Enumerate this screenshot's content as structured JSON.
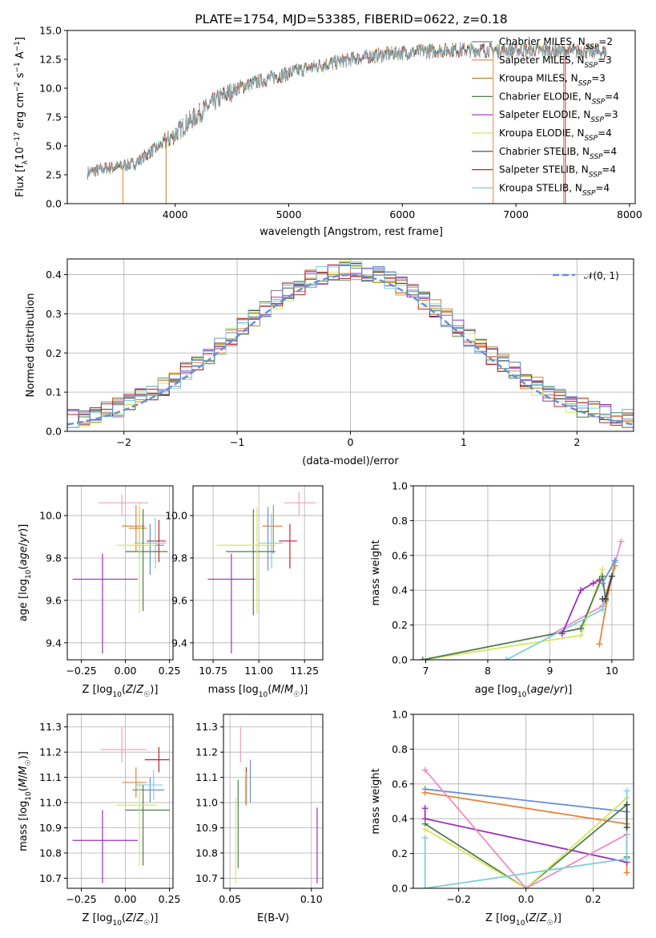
{
  "chart_data": [
    {
      "id": "spectrum",
      "type": "line",
      "title": "PLATE=1754, MJD=53385, FIBERID=0622, z=0.18",
      "xlabel": "wavelength [Angstrom, rest frame]",
      "ylabel": "Flux [f_λ 10^-17 erg cm^-2 s^-1 A^-1]",
      "xlim": [
        3050,
        8050
      ],
      "ylim": [
        0,
        15
      ],
      "xticks": [
        4000,
        5000,
        6000,
        7000,
        8000
      ],
      "yticks": [
        0.0,
        2.5,
        5.0,
        7.5,
        10.0,
        12.5,
        15.0
      ],
      "grid": false,
      "legend_position": "top-right",
      "continuum": {
        "x": [
          3230,
          3350,
          3500,
          3650,
          3800,
          3950,
          4100,
          4250,
          4400,
          4550,
          4700,
          4850,
          5000,
          5150,
          5300,
          5450,
          5600,
          5750,
          5900,
          6050,
          6200,
          6400,
          6600,
          6800,
          7000,
          7200,
          7400,
          7600,
          7800
        ],
        "y": [
          2.7,
          3.0,
          3.2,
          3.5,
          4.6,
          5.6,
          6.9,
          8.1,
          9.2,
          10.0,
          10.5,
          10.9,
          11.3,
          11.7,
          12.0,
          12.3,
          12.6,
          12.8,
          13.0,
          13.1,
          13.2,
          13.3,
          13.3,
          13.3,
          13.3,
          13.3,
          13.2,
          13.2,
          13.1
        ]
      },
      "series": [
        {
          "name": "Chabrier MILES, N_SSP=2",
          "label_main": "Chabrier MILES, N",
          "label_sub": "SSP",
          "label_tail": "=2",
          "color": "#808080"
        },
        {
          "name": "Salpeter MILES, N_SSP=3",
          "label_main": "Salpeter MILES, N",
          "label_sub": "SSP",
          "label_tail": "=3",
          "color": "#e8833a"
        },
        {
          "name": "Kroupa MILES, N_SSP=3",
          "label_main": "Kroupa MILES, N",
          "label_sub": "SSP",
          "label_tail": "=3",
          "color": "#b5872a"
        },
        {
          "name": "Chabrier ELODIE, N_SSP=4",
          "label_main": "Chabrier ELODIE, N",
          "label_sub": "SSP",
          "label_tail": "=4",
          "color": "#4e7d4e"
        },
        {
          "name": "Salpeter ELODIE, N_SSP=3",
          "label_main": "Salpeter ELODIE, N",
          "label_sub": "SSP",
          "label_tail": "=3",
          "color": "#9b30b8"
        },
        {
          "name": "Kroupa ELODIE, N_SSP=4",
          "label_main": "Kroupa ELODIE, N",
          "label_sub": "SSP",
          "label_tail": "=4",
          "color": "#d7e85a"
        },
        {
          "name": "Chabrier STELIB, N_SSP=4",
          "label_main": "Chabrier STELIB, N",
          "label_sub": "SSP",
          "label_tail": "=4",
          "color": "#404040"
        },
        {
          "name": "Salpeter STELIB, N_SSP=4",
          "label_main": "Salpeter STELIB, N",
          "label_sub": "SSP",
          "label_tail": "=4",
          "color": "#c0262e"
        },
        {
          "name": "Kroupa STELIB, N_SSP=4",
          "label_main": "Kroupa STELIB, N",
          "label_sub": "SSP",
          "label_tail": "=4",
          "color": "#7ecfd9"
        }
      ]
    },
    {
      "id": "residuals",
      "type": "histogram",
      "xlabel": "(data-model)/error",
      "ylabel": "Normed distribution",
      "xlim": [
        -2.5,
        2.5
      ],
      "ylim": [
        0,
        0.44
      ],
      "xticks": [
        -2,
        -1,
        0,
        1,
        2
      ],
      "yticks": [
        0.0,
        0.1,
        0.2,
        0.3,
        0.4
      ],
      "grid": true,
      "legend_position": "top-right",
      "gaussian_label": "𝒩(0, 1)",
      "gaussian_color": "#6a8fd6",
      "bin_edges_start": -2.5,
      "bin_width": 0.1,
      "bin_count": 50
    },
    {
      "id": "age-vs-Z",
      "type": "errorbar",
      "xlabel": "Z [log10(Z/Z☉)]",
      "ylabel": "age  [log10(age/yr)]",
      "xlim": [
        -0.33,
        0.27
      ],
      "ylim": [
        9.32,
        10.14
      ],
      "xticks": [
        -0.25,
        0.0,
        0.25
      ],
      "yticks": [
        9.4,
        9.6,
        9.8,
        10.0
      ],
      "grid": true,
      "points": [
        {
          "x": -0.02,
          "xlo": 0.13,
          "xhi": 0.15,
          "y": 10.06,
          "ylo": 0.06,
          "yhi": 0.04,
          "color": "#f2a0c0"
        },
        {
          "x": 0.06,
          "xlo": 0.08,
          "xhi": 0.05,
          "y": 9.95,
          "ylo": 0.12,
          "yhi": 0.1,
          "color": "#e8833a"
        },
        {
          "x": 0.08,
          "xlo": 0.06,
          "xhi": 0.04,
          "y": 9.94,
          "ylo": 0.14,
          "yhi": 0.1,
          "color": "#b5872a"
        },
        {
          "x": 0.19,
          "xlo": 0.07,
          "xhi": 0.04,
          "y": 9.88,
          "ylo": 0.1,
          "yhi": 0.1,
          "color": "#c0262e"
        },
        {
          "x": 0.14,
          "xlo": 0.09,
          "xhi": 0.08,
          "y": 9.86,
          "ylo": 0.14,
          "yhi": 0.1,
          "color": "#6a8fd6"
        },
        {
          "x": 0.17,
          "xlo": 0.12,
          "xhi": 0.06,
          "y": 9.87,
          "ylo": 0.12,
          "yhi": 0.12,
          "color": "#7ecfd9"
        },
        {
          "x": 0.1,
          "xlo": 0.1,
          "xhi": 0.14,
          "y": 9.83,
          "ylo": 0.28,
          "yhi": 0.2,
          "color": "#4e7d4e"
        },
        {
          "x": 0.08,
          "xlo": 0.13,
          "xhi": 0.09,
          "y": 9.86,
          "ylo": 0.32,
          "yhi": 0.2,
          "color": "#d7e85a"
        },
        {
          "x": -0.13,
          "xlo": 0.17,
          "xhi": 0.2,
          "y": 9.7,
          "ylo": 0.35,
          "yhi": 0.12,
          "color": "#9b30b8"
        }
      ]
    },
    {
      "id": "age-vs-mass",
      "type": "errorbar",
      "xlabel": "mass [log10(M/M☉)]",
      "xlim": [
        10.64,
        11.35
      ],
      "ylim": [
        9.32,
        10.14
      ],
      "xticks": [
        10.75,
        11.0,
        11.25
      ],
      "yticks": [
        9.4,
        9.6,
        9.8,
        10.0
      ],
      "grid": true,
      "points": [
        {
          "x": 11.22,
          "xlo": 0.08,
          "xhi": 0.09,
          "y": 10.06,
          "ylo": 0.06,
          "yhi": 0.05,
          "color": "#f2a0c0"
        },
        {
          "x": 11.08,
          "xlo": 0.06,
          "xhi": 0.05,
          "y": 9.95,
          "ylo": 0.13,
          "yhi": 0.1,
          "color": "#e8833a"
        },
        {
          "x": 11.17,
          "xlo": 0.06,
          "xhi": 0.04,
          "y": 9.88,
          "ylo": 0.13,
          "yhi": 0.08,
          "color": "#c0262e"
        },
        {
          "x": 11.05,
          "xlo": 0.05,
          "xhi": 0.04,
          "y": 9.86,
          "ylo": 0.12,
          "yhi": 0.18,
          "color": "#6a8fd6"
        },
        {
          "x": 11.07,
          "xlo": 0.07,
          "xhi": 0.06,
          "y": 9.87,
          "ylo": 0.12,
          "yhi": 0.14,
          "color": "#7ecfd9"
        },
        {
          "x": 10.97,
          "xlo": 0.15,
          "xhi": 0.12,
          "y": 9.83,
          "ylo": 0.3,
          "yhi": 0.2,
          "color": "#4e7d4e"
        },
        {
          "x": 10.99,
          "xlo": 0.22,
          "xhi": 0.1,
          "y": 9.86,
          "ylo": 0.32,
          "yhi": 0.18,
          "color": "#d7e85a"
        },
        {
          "x": 10.85,
          "xlo": 0.13,
          "xhi": 0.13,
          "y": 9.7,
          "ylo": 0.35,
          "yhi": 0.12,
          "color": "#9b30b8"
        }
      ]
    },
    {
      "id": "mass-weight-vs-age",
      "type": "line",
      "xlabel": "age  [log10(age/yr)]",
      "ylabel": "mass weight",
      "xlim": [
        6.8,
        10.35
      ],
      "ylim": [
        0.0,
        1.0
      ],
      "xticks": [
        7,
        8,
        9,
        10
      ],
      "yticks": [
        0.0,
        0.2,
        0.4,
        0.6,
        0.8,
        1.0
      ],
      "grid": true,
      "series": [
        {
          "color": "#f08cc0",
          "x": [
            9.0,
            9.85,
            10.15
          ],
          "y": [
            0.14,
            0.31,
            0.68
          ]
        },
        {
          "color": "#d7e85a",
          "x": [
            6.95,
            9.5,
            9.85
          ],
          "y": [
            0.0,
            0.14,
            0.52
          ]
        },
        {
          "color": "#4e7d4e",
          "x": [
            6.95,
            9.5,
            9.85,
            9.9
          ],
          "y": [
            0.0,
            0.18,
            0.48,
            0.34
          ]
        },
        {
          "color": "#7ecfd9",
          "x": [
            8.3,
            9.85,
            10.05
          ],
          "y": [
            0.0,
            0.29,
            0.56
          ]
        },
        {
          "color": "#6a8fd6",
          "x": [
            9.85,
            10.05
          ],
          "y": [
            0.44,
            0.57
          ]
        },
        {
          "color": "#e8833a",
          "x": [
            9.8,
            9.95,
            10.05
          ],
          "y": [
            0.09,
            0.4,
            0.54
          ]
        },
        {
          "color": "#9b30b8",
          "x": [
            9.2,
            9.5,
            9.7,
            9.8
          ],
          "y": [
            0.15,
            0.4,
            0.44,
            0.46
          ]
        },
        {
          "color": "#404040",
          "x": [
            9.85,
            9.9,
            10.0
          ],
          "y": [
            0.35,
            0.35,
            0.48
          ]
        }
      ]
    },
    {
      "id": "mass-vs-Z",
      "type": "errorbar",
      "xlabel": "Z [log10(Z/Z☉)]",
      "ylabel": "mass [log10(M/M☉)]",
      "xlim": [
        -0.33,
        0.27
      ],
      "ylim": [
        10.66,
        11.35
      ],
      "xticks": [
        -0.25,
        0.0,
        0.25
      ],
      "yticks": [
        10.7,
        10.8,
        10.9,
        11.0,
        11.1,
        11.2,
        11.3
      ],
      "grid": true,
      "points": [
        {
          "x": -0.02,
          "xlo": 0.12,
          "xhi": 0.14,
          "y": 11.21,
          "ylo": 0.05,
          "yhi": 0.09,
          "color": "#f2a0c0"
        },
        {
          "x": 0.19,
          "xlo": 0.08,
          "xhi": 0.06,
          "y": 11.17,
          "ylo": 0.05,
          "yhi": 0.05,
          "color": "#c0262e"
        },
        {
          "x": 0.06,
          "xlo": 0.08,
          "xhi": 0.06,
          "y": 11.08,
          "ylo": 0.06,
          "yhi": 0.06,
          "color": "#e8833a"
        },
        {
          "x": 0.14,
          "xlo": 0.1,
          "xhi": 0.08,
          "y": 11.05,
          "ylo": 0.05,
          "yhi": 0.05,
          "color": "#6a8fd6"
        },
        {
          "x": 0.16,
          "xlo": 0.1,
          "xhi": 0.05,
          "y": 11.07,
          "ylo": 0.06,
          "yhi": 0.06,
          "color": "#7ecfd9"
        },
        {
          "x": 0.1,
          "xlo": 0.1,
          "xhi": 0.15,
          "y": 10.97,
          "ylo": 0.22,
          "yhi": 0.1,
          "color": "#4e7d4e"
        },
        {
          "x": 0.08,
          "xlo": 0.13,
          "xhi": 0.1,
          "y": 10.99,
          "ylo": 0.24,
          "yhi": 0.1,
          "color": "#d7e85a"
        },
        {
          "x": -0.13,
          "xlo": 0.17,
          "xhi": 0.2,
          "y": 10.85,
          "ylo": 0.17,
          "yhi": 0.12,
          "color": "#9b30b8"
        }
      ]
    },
    {
      "id": "mass-vs-EBV",
      "type": "errorbar",
      "xlabel": "E(B-V)",
      "xlim": [
        0.046,
        0.107
      ],
      "ylim": [
        10.66,
        11.35
      ],
      "xticks": [
        0.05,
        0.1
      ],
      "yticks": [
        10.7,
        10.8,
        10.9,
        11.0,
        11.1,
        11.2,
        11.3
      ],
      "grid": true,
      "points": [
        {
          "x": 0.0565,
          "y": 11.21,
          "ylo": 0.05,
          "yhi": 0.09,
          "color": "#f2a0c0"
        },
        {
          "x": 0.06,
          "y": 11.08,
          "ylo": 0.05,
          "yhi": 0.06,
          "color": "#c0262e"
        },
        {
          "x": 0.06,
          "y": 11.05,
          "ylo": 0.06,
          "yhi": 0.07,
          "color": "#e8833a"
        },
        {
          "x": 0.0625,
          "y": 11.06,
          "ylo": 0.06,
          "yhi": 0.11,
          "color": "#6a8fd6"
        },
        {
          "x": 0.0595,
          "y": 11.05,
          "ylo": 0.06,
          "yhi": 0.06,
          "color": "#7ecfd9"
        },
        {
          "x": 0.055,
          "y": 10.96,
          "ylo": 0.22,
          "yhi": 0.13,
          "color": "#4e7d4e"
        },
        {
          "x": 0.0535,
          "y": 10.92,
          "ylo": 0.24,
          "yhi": 0.1,
          "color": "#d7e85a"
        },
        {
          "x": 0.1035,
          "y": 10.85,
          "ylo": 0.17,
          "yhi": 0.13,
          "color": "#9b30b8"
        }
      ]
    },
    {
      "id": "mass-weight-vs-Z",
      "type": "line",
      "xlabel": "Z [log10(Z/Z☉)]",
      "ylabel": "mass weight",
      "xlim": [
        -0.335,
        0.32
      ],
      "ylim": [
        0.0,
        1.0
      ],
      "xticks": [
        -0.2,
        0.0,
        0.2
      ],
      "yticks": [
        0.0,
        0.2,
        0.4,
        0.6,
        0.8,
        1.0
      ],
      "grid": true,
      "series": [
        {
          "color": "#6a8fd6",
          "x": [
            -0.3,
            0.3
          ],
          "y": [
            0.57,
            0.44
          ]
        },
        {
          "color": "#e8833a",
          "x": [
            -0.3,
            0.3,
            0.3
          ],
          "y": [
            0.55,
            0.37,
            0.09
          ]
        },
        {
          "color": "#9b30b8",
          "x": [
            -0.3,
            -0.3,
            0.3
          ],
          "y": [
            0.46,
            0.4,
            0.15
          ]
        },
        {
          "color": "#4e7d4e",
          "x": [
            -0.3,
            0.0,
            0.3,
            0.3
          ],
          "y": [
            0.37,
            0.0,
            0.48,
            0.18
          ]
        },
        {
          "color": "#d7e85a",
          "x": [
            -0.3,
            0.0,
            0.3
          ],
          "y": [
            0.34,
            0.0,
            0.52
          ]
        },
        {
          "color": "#f08cc0",
          "x": [
            -0.3,
            0.0,
            0.3
          ],
          "y": [
            0.68,
            0.0,
            0.31
          ]
        },
        {
          "color": "#7ecfd9",
          "x": [
            -0.3,
            -0.3,
            0.3,
            0.3
          ],
          "y": [
            0.29,
            0.0,
            0.17,
            0.56
          ]
        },
        {
          "color": "#404040",
          "x": [
            0.3,
            0.3
          ],
          "y": [
            0.35,
            0.48
          ]
        }
      ]
    }
  ]
}
